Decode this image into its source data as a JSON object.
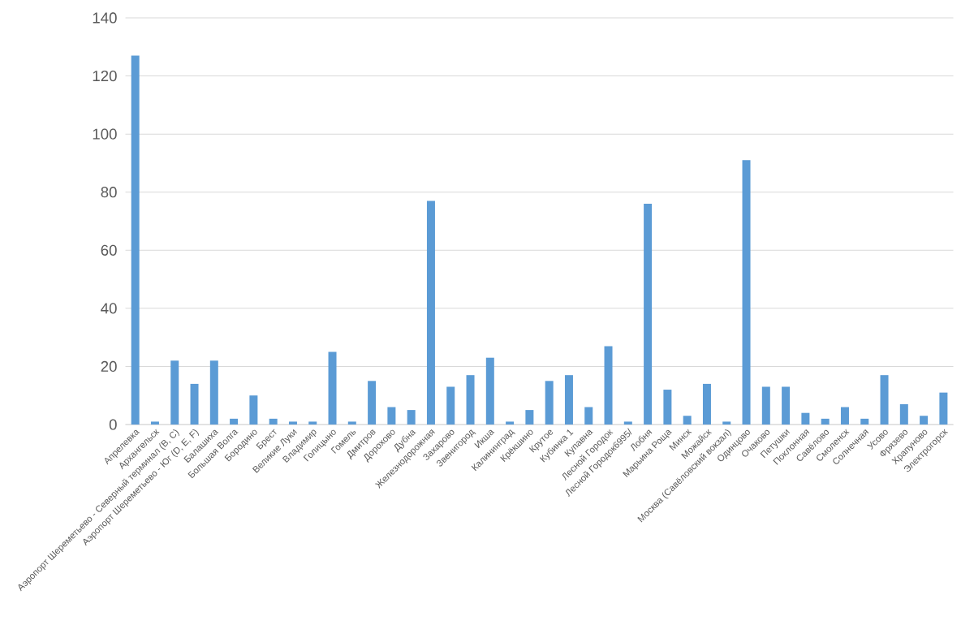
{
  "chart_data": {
    "type": "bar",
    "categories": [
      "Апрелевка",
      "Архангельск",
      "Аэропорт Шереметьево - Северный терминал (B, C)",
      "Аэропорт Шереметьево - Юг (D, E, F)",
      "Балашиха",
      "Большая Волга",
      "Бородино",
      "Брест",
      "Великие Луки",
      "Владимир",
      "Голицыно",
      "Гомель",
      "Дмитров",
      "Дорохово",
      "Дубна",
      "Железнодорожная",
      "Захарово",
      "Звенигород",
      "Икша",
      "Калининград",
      "Крёкшино",
      "Крутое",
      "Кубинка 1",
      "Купавна",
      "Лесной Городок",
      "Лесной Городок6995/",
      "Лобня",
      "Марьина Роща",
      "Минск",
      "Можайск",
      "Москва (Савёловский вокзал)",
      "Одинцово",
      "Очаково",
      "Петушки",
      "Поклонная",
      "Савёлово",
      "Смоленск",
      "Солнечная",
      "Усово",
      "Фрязево",
      "Храпуново",
      "Электрогорск"
    ],
    "values": [
      127,
      1,
      22,
      14,
      22,
      2,
      10,
      2,
      1,
      1,
      25,
      1,
      15,
      6,
      5,
      77,
      13,
      17,
      23,
      1,
      5,
      15,
      17,
      6,
      27,
      1,
      76,
      12,
      3,
      14,
      1,
      91,
      13,
      13,
      4,
      2,
      6,
      2,
      17,
      7,
      3,
      11
    ],
    "color": "#5b9bd5",
    "ylim": [
      0,
      140
    ],
    "yticks": [
      0,
      20,
      40,
      60,
      80,
      100,
      120,
      140
    ],
    "grid": "y"
  }
}
